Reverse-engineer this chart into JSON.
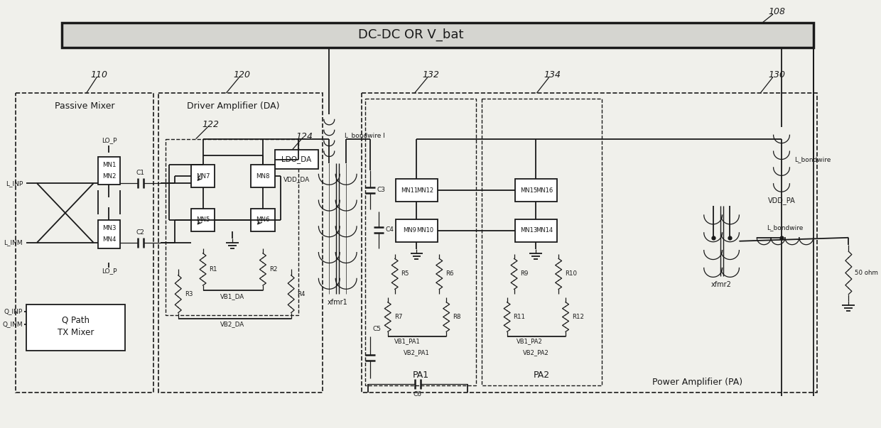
{
  "bg_color": "#f0f0eb",
  "line_color": "#1a1a1a",
  "dc_dc_label": "DC-DC OR V_bat",
  "ref_108": "108",
  "ref_110": "110",
  "ref_120": "120",
  "ref_122": "122",
  "ref_124": "124",
  "ref_130": "130",
  "ref_132": "132",
  "ref_134": "134",
  "label_PM": "Passive Mixer",
  "label_DA": "Driver Amplifier (DA)",
  "label_LDO": "LDO_DA",
  "label_VDD_DA": "VDD_DA",
  "label_xfmr1": "xfmr1",
  "label_xfmr2": "xfmr2",
  "label_PA1": "PA1",
  "label_PA2": "PA2",
  "label_PA": "Power Amplifier (PA)",
  "label_C6": "C6",
  "label_50ohm": "50 ohm",
  "label_VDD_PA": "VDD_PA",
  "label_L_bondwireI": "L_bondwire I",
  "label_L_bondwire": "L_bondwire",
  "label_VB1_DA": "VB1_DA",
  "label_VB2_DA": "VB2_DA",
  "label_VB1_PA1": "VB1_PA1",
  "label_VB2_PA1": "VB2_PA1",
  "label_VB1_PA2": "VB1_PA2",
  "label_VB2_PA2": "VB2_PA2",
  "label_LO_P": "LO_P",
  "label_LINP": "L_INP",
  "label_LINM": "L_INM",
  "label_QINP": "Q_INP",
  "label_QINM": "Q_INM",
  "label_C1": "C1",
  "label_C2": "C2",
  "label_C3": "C3",
  "label_C4": "C4",
  "label_C5": "C5",
  "label_MN1": "MN1",
  "label_MN2": "MN2",
  "label_MN3": "MN3",
  "label_MN4": "MN4",
  "label_MN5": "MN5",
  "label_MN6": "MN6",
  "label_MN7": "MN7",
  "label_MN8": "MN8",
  "label_MN9": "MN9",
  "label_MN10": "MN10",
  "label_MN11": "MN11",
  "label_MN12": "MN12",
  "label_MN13": "MN13",
  "label_MN14": "MN14",
  "label_MN15": "MN15",
  "label_MN16": "MN16",
  "label_R1": "R1",
  "label_R2": "R2",
  "label_R3": "R3",
  "label_R4": "R4",
  "label_R5": "R5",
  "label_R6": "R6",
  "label_R7": "R7",
  "label_R8": "R8",
  "label_R9": "R9",
  "label_R10": "R10",
  "label_R11": "R11",
  "label_R12": "R12"
}
